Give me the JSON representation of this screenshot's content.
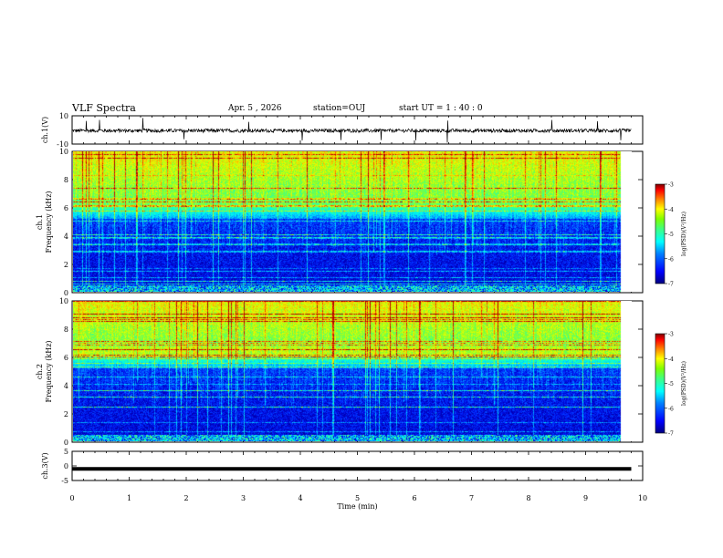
{
  "header": {
    "title": "VLF Spectra",
    "date": "Apr. 5 , 2026",
    "station": "station=OUJ",
    "start": "start UT =  1 : 40 : 0"
  },
  "colors": {
    "waveform": "#000000",
    "spectrogram_palette": [
      "#00007f",
      "#0000ff",
      "#0080ff",
      "#00ffff",
      "#40ff80",
      "#80ff00",
      "#ffff00",
      "#ff8000",
      "#ff0000",
      "#7f0000"
    ]
  },
  "chart_data": [
    {
      "type": "line",
      "name": "ch1-waveform",
      "ylabel": "ch.1(V)",
      "ylim": [
        -10,
        10
      ],
      "yticks": [
        "10",
        "-10"
      ],
      "description_values": {
        "baseline": -0.5,
        "noise_amplitude": 2.5
      }
    },
    {
      "type": "heatmap",
      "name": "ch1-spectrogram",
      "ylabel_top": "ch.1",
      "ylabel": "Frequency (kHz)",
      "ylim": [
        0,
        10
      ],
      "yticks": [
        "0",
        "2",
        "4",
        "6",
        "8",
        "10"
      ],
      "xlim": [
        0,
        10
      ],
      "data_end_min": 9.8,
      "colorbar": {
        "label": "log(PSD)(V²/Hz)",
        "range": [
          -7,
          -3
        ],
        "ticks": [
          "-3",
          "-4",
          "-5",
          "-6",
          "-7"
        ]
      }
    },
    {
      "type": "heatmap",
      "name": "ch2-spectrogram",
      "ylabel_top": "ch.2",
      "ylabel": "Frequency (kHz)",
      "ylim": [
        0,
        10
      ],
      "yticks": [
        "0",
        "2",
        "4",
        "6",
        "8",
        "10"
      ],
      "xlim": [
        0,
        10
      ],
      "data_end_min": 9.8,
      "colorbar": {
        "label": "log(PSD)(V²/Hz)",
        "range": [
          -7,
          -3
        ],
        "ticks": [
          "-3",
          "-4",
          "-5",
          "-6",
          "-7"
        ]
      }
    },
    {
      "type": "line",
      "name": "ch3-waveform",
      "ylabel": "ch.3(V)",
      "ylim": [
        -5,
        5
      ],
      "yticks": [
        "5",
        "0",
        "-5"
      ],
      "description_values": {
        "baseline": -1.0
      },
      "xlabel": "Time (min)",
      "xticks": [
        "0",
        "1",
        "2",
        "3",
        "4",
        "5",
        "6",
        "7",
        "8",
        "9",
        "10"
      ]
    }
  ]
}
